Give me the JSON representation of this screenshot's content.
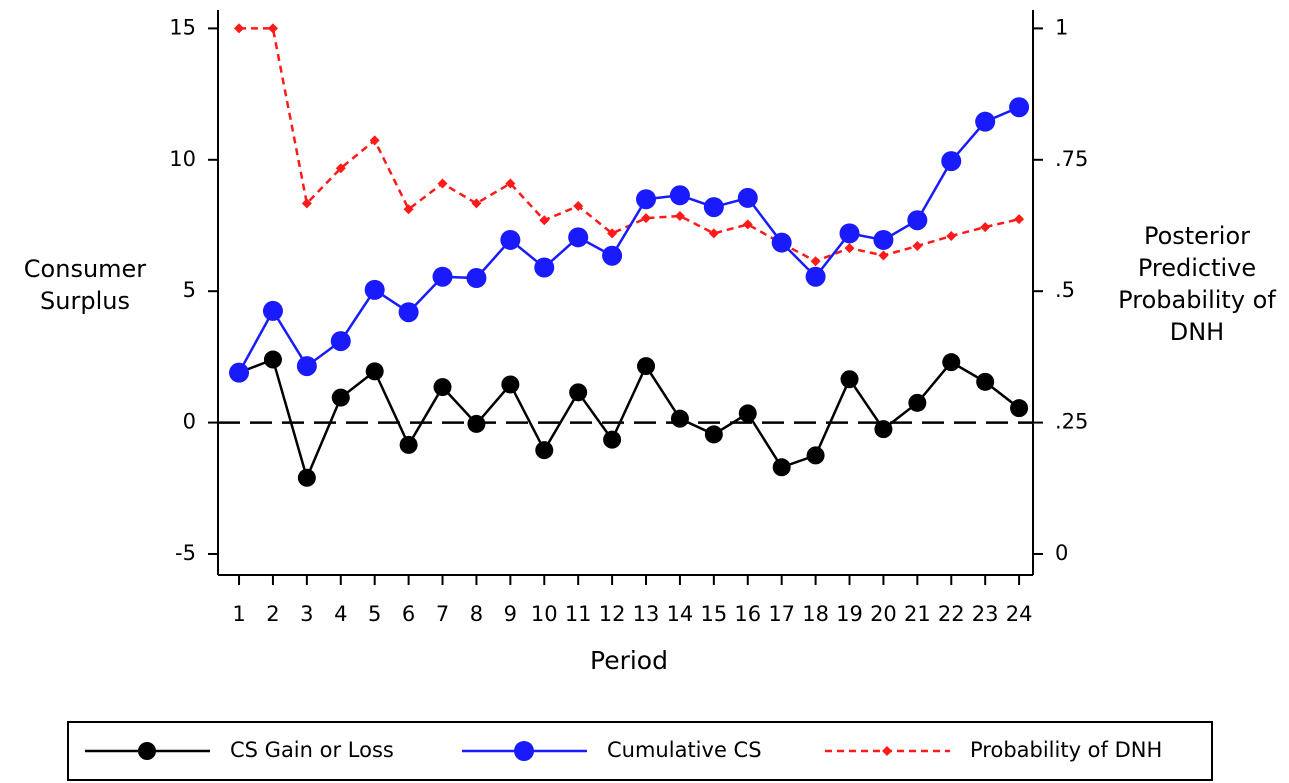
{
  "chart_data": {
    "type": "line",
    "x": [
      1,
      2,
      3,
      4,
      5,
      6,
      7,
      8,
      9,
      10,
      11,
      12,
      13,
      14,
      15,
      16,
      17,
      18,
      19,
      20,
      21,
      22,
      23,
      24
    ],
    "xlim": [
      0.38,
      24.41
    ],
    "xticks": [
      1,
      2,
      3,
      4,
      5,
      6,
      7,
      8,
      9,
      10,
      11,
      12,
      13,
      14,
      15,
      16,
      17,
      18,
      19,
      20,
      21,
      22,
      23,
      24
    ],
    "x_label": "Period",
    "y_label": "Consumer Surplus",
    "y2_label": "Posterior Predictive Probability of DNH",
    "ylim": [
      -5.8,
      15.7
    ],
    "yticks": [
      -5,
      0,
      5,
      10,
      15
    ],
    "y2lim": [
      -0.04,
      1.035
    ],
    "y2ticks": [
      0,
      {
        "value": 0.25,
        "label": ".25"
      },
      {
        "value": 0.5,
        "label": ".5"
      },
      {
        "value": 0.75,
        "label": ".75"
      },
      1
    ],
    "reference_line": 0,
    "series": [
      {
        "name": "CS Gain or Loss",
        "color": "#000000",
        "marker": "circle",
        "dash": "solid",
        "values": [
          1.9,
          2.4,
          -2.1,
          0.95,
          1.95,
          -0.85,
          1.35,
          -0.05,
          1.45,
          -1.05,
          1.15,
          -0.65,
          2.15,
          0.15,
          -0.45,
          0.35,
          -1.7,
          -1.25,
          1.65,
          -0.25,
          0.75,
          2.3,
          1.55,
          0.55
        ]
      },
      {
        "name": "Cumulative CS",
        "color": "#1a1aff",
        "marker": "circle",
        "dash": "solid",
        "values": [
          1.9,
          4.25,
          2.15,
          3.1,
          5.05,
          4.2,
          5.55,
          5.5,
          6.95,
          5.9,
          7.05,
          6.35,
          8.5,
          8.65,
          8.2,
          8.55,
          6.85,
          5.55,
          7.2,
          6.95,
          7.7,
          9.95,
          11.45,
          12.0
        ]
      },
      {
        "name": "Probability of DNH",
        "color": "#ff1a1a",
        "marker": "diamond",
        "dash": "dashed",
        "axis": "y2",
        "values": [
          1,
          1,
          0.667,
          0.734,
          0.787,
          0.656,
          0.705,
          0.667,
          0.705,
          0.635,
          0.662,
          0.61,
          0.639,
          0.643,
          0.61,
          0.627,
          0.591,
          0.557,
          0.582,
          0.568,
          0.586,
          0.605,
          0.622,
          0.637
        ]
      }
    ]
  }
}
